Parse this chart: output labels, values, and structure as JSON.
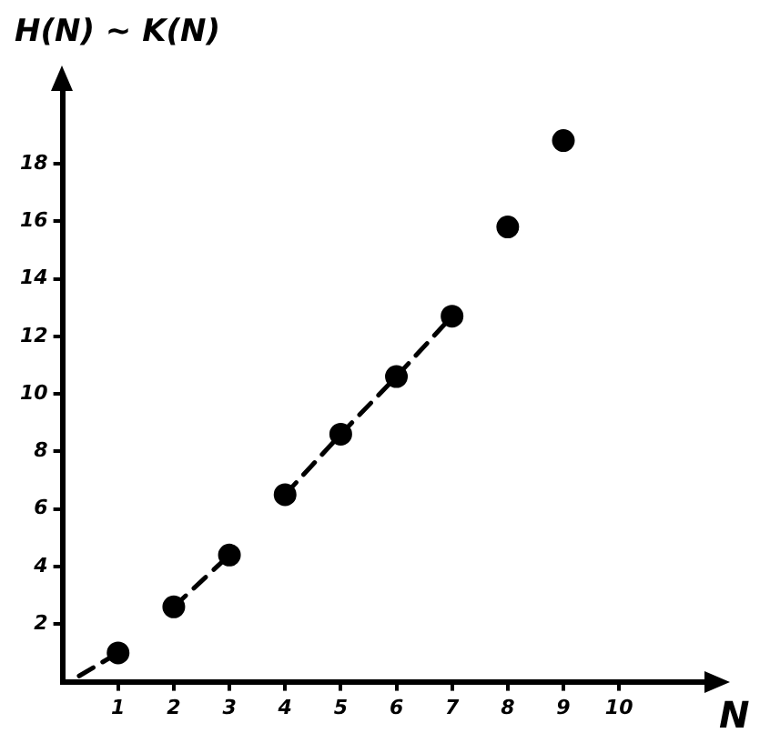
{
  "chart_data": {
    "type": "scatter",
    "ylabel": "H(N) ~ K(N)",
    "xlabel": "N",
    "series": [
      {
        "color": "#000000",
        "x": [
          1,
          2,
          3,
          4,
          5,
          6,
          7,
          8,
          9
        ],
        "values": [
          1,
          2.6,
          4.4,
          6.5,
          8.6,
          10.6,
          12.7,
          15.8,
          18.8
        ],
        "marker": "circle"
      },
      {
        "type": "line",
        "color": "#000000",
        "x": [
          0.3,
          1
        ],
        "values": [
          0.2,
          1
        ],
        "marker": "none",
        "line_style": "dashed"
      },
      {
        "type": "line",
        "color": "#000000",
        "x": [
          2,
          3
        ],
        "values": [
          2.6,
          4.4
        ],
        "marker": "none",
        "line_style": "dashed"
      },
      {
        "type": "line",
        "color": "#000000",
        "x": [
          4,
          5,
          6,
          7
        ],
        "values": [
          6.5,
          8.6,
          10.6,
          12.7
        ],
        "marker": "none",
        "line_style": "dashed"
      }
    ],
    "xlim": [
      0,
      11.6
    ],
    "ylim": [
      0,
      20.5
    ],
    "xticks": [
      1,
      2,
      3,
      4,
      5,
      6,
      7,
      8,
      9,
      10
    ],
    "yticks": [
      2,
      4,
      6,
      8,
      10,
      12,
      14,
      16,
      18
    ],
    "grid": false,
    "legend": false
  }
}
